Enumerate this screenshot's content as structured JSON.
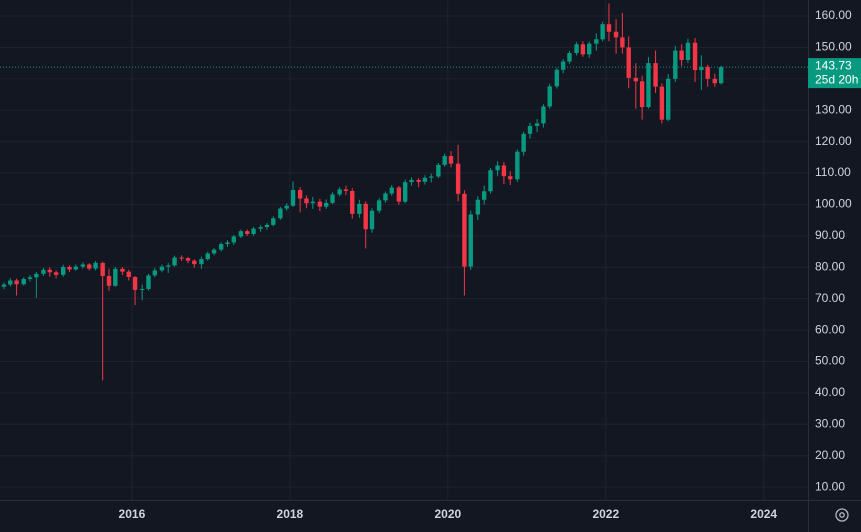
{
  "chart_data": {
    "type": "candlestick",
    "x": [
      2014.38,
      2014.46,
      2014.54,
      2014.63,
      2014.71,
      2014.79,
      2014.88,
      2014.96,
      2015.04,
      2015.13,
      2015.21,
      2015.29,
      2015.38,
      2015.46,
      2015.54,
      2015.63,
      2015.71,
      2015.79,
      2015.88,
      2015.96,
      2016.04,
      2016.13,
      2016.21,
      2016.29,
      2016.38,
      2016.46,
      2016.54,
      2016.63,
      2016.71,
      2016.79,
      2016.88,
      2016.96,
      2017.04,
      2017.13,
      2017.21,
      2017.29,
      2017.38,
      2017.46,
      2017.54,
      2017.63,
      2017.71,
      2017.79,
      2017.88,
      2017.96,
      2018.04,
      2018.13,
      2018.21,
      2018.29,
      2018.38,
      2018.46,
      2018.54,
      2018.63,
      2018.71,
      2018.79,
      2018.88,
      2018.96,
      2019.04,
      2019.13,
      2019.21,
      2019.29,
      2019.38,
      2019.46,
      2019.54,
      2019.63,
      2019.71,
      2019.79,
      2019.88,
      2019.96,
      2020.04,
      2020.13,
      2020.21,
      2020.29,
      2020.38,
      2020.46,
      2020.54,
      2020.63,
      2020.71,
      2020.79,
      2020.88,
      2020.96,
      2021.04,
      2021.13,
      2021.21,
      2021.29,
      2021.38,
      2021.46,
      2021.54,
      2021.63,
      2021.71,
      2021.79,
      2021.88,
      2021.96,
      2022.04,
      2022.13,
      2022.21,
      2022.29,
      2022.38,
      2022.46,
      2022.54,
      2022.63,
      2022.71,
      2022.79,
      2022.88,
      2022.96,
      2023.04,
      2023.13,
      2023.21,
      2023.29,
      2023.38,
      2023.46
    ],
    "open": [
      73.8,
      74.5,
      75.8,
      74.6,
      76.3,
      76.8,
      77.9,
      79.2,
      78.4,
      77.6,
      80.1,
      79.3,
      80.2,
      80.9,
      79.6,
      81.4,
      77.2,
      74.1,
      79.5,
      78.6,
      76.9,
      72.8,
      73.1,
      77.4,
      79.0,
      80.2,
      80.6,
      83.1,
      82.9,
      82.1,
      81.0,
      82.6,
      84.4,
      85.6,
      87.4,
      87.9,
      89.8,
      91.5,
      90.6,
      92.3,
      92.8,
      93.5,
      95.6,
      98.7,
      99.6,
      104.6,
      101.9,
      100.4,
      100.9,
      99.3,
      100.5,
      103.2,
      104.8,
      104.3,
      97.0,
      100.2,
      92.1,
      98.0,
      101.3,
      103.5,
      105.4,
      100.9,
      107.1,
      107.8,
      107.2,
      108.5,
      108.9,
      112.6,
      115.4,
      113.0,
      103.4,
      80.2,
      96.8,
      101.5,
      104.2,
      110.9,
      112.4,
      109.0,
      108.0,
      116.8,
      122.5,
      125.0,
      125.8,
      131.2,
      137.6,
      142.9,
      145.5,
      148.2,
      151.0,
      147.8,
      151.2,
      152.6,
      157.4,
      155.0,
      153.2,
      150.0,
      140.3,
      139.2,
      131.0,
      145.0,
      137.5,
      127.0,
      140.0,
      149.0,
      146.0,
      151.5,
      142.8,
      143.8,
      140.0,
      138.6
    ],
    "high": [
      75.2,
      76.5,
      76.4,
      76.8,
      77.5,
      78.5,
      79.8,
      80.0,
      79.0,
      80.8,
      80.6,
      80.9,
      81.6,
      81.3,
      82.0,
      81.8,
      79.5,
      80.1,
      80.0,
      79.2,
      77.2,
      74.5,
      77.9,
      79.8,
      80.9,
      81.3,
      83.7,
      83.8,
      83.3,
      82.5,
      83.4,
      85.0,
      86.1,
      87.9,
      88.6,
      90.3,
      92.0,
      92.0,
      92.9,
      93.4,
      94.1,
      96.2,
      99.2,
      100.4,
      107.3,
      105.5,
      102.9,
      102.4,
      101.8,
      101.6,
      103.9,
      105.5,
      106.0,
      105.2,
      101.5,
      101.0,
      98.8,
      102.0,
      104.1,
      106.2,
      105.9,
      107.9,
      108.6,
      108.4,
      109.3,
      109.8,
      113.2,
      116.2,
      117.0,
      119.0,
      104.5,
      98.0,
      102.6,
      106.0,
      111.6,
      113.8,
      113.5,
      110.6,
      117.5,
      123.2,
      126.0,
      127.2,
      131.9,
      138.4,
      143.5,
      146.3,
      148.9,
      151.7,
      152.0,
      151.9,
      154.5,
      158.2,
      164.0,
      159.0,
      161.0,
      153.5,
      145.0,
      141.0,
      147.0,
      149.0,
      138.5,
      141.5,
      150.5,
      151.0,
      152.8,
      153.0,
      147.5,
      144.5,
      141.6,
      144.2
    ],
    "low": [
      73.0,
      73.9,
      71.0,
      74.2,
      75.5,
      70.3,
      77.2,
      77.0,
      76.5,
      77.0,
      78.5,
      78.9,
      79.6,
      79.0,
      79.0,
      44.0,
      72.5,
      73.8,
      77.5,
      75.8,
      68.0,
      69.5,
      72.6,
      76.8,
      78.4,
      78.2,
      80.2,
      82.0,
      81.3,
      79.9,
      79.5,
      82.1,
      83.8,
      85.0,
      86.5,
      87.1,
      89.3,
      90.0,
      90.1,
      91.3,
      92.0,
      93.0,
      95.1,
      98.0,
      99.2,
      97.5,
      98.8,
      98.6,
      97.9,
      98.6,
      100.1,
      102.6,
      103.0,
      95.5,
      95.8,
      86.0,
      91.0,
      97.2,
      100.5,
      102.8,
      99.9,
      100.4,
      106.0,
      105.5,
      106.3,
      107.0,
      108.4,
      112.0,
      111.8,
      101.0,
      71.0,
      79.2,
      95.0,
      100.0,
      103.5,
      109.0,
      106.5,
      106.2,
      107.2,
      115.5,
      121.0,
      123.0,
      124.5,
      130.5,
      136.9,
      141.8,
      144.8,
      147.5,
      147.0,
      146.7,
      149.0,
      151.9,
      152.0,
      148.0,
      148.0,
      137.0,
      130.5,
      127.0,
      130.5,
      135.5,
      125.8,
      126.5,
      139.0,
      144.0,
      145.0,
      139.0,
      136.5,
      137.5,
      137.5,
      138.2
    ],
    "close": [
      74.5,
      75.8,
      74.6,
      76.3,
      76.8,
      77.9,
      79.2,
      78.4,
      77.6,
      80.1,
      79.3,
      80.2,
      80.9,
      79.6,
      81.4,
      77.2,
      74.1,
      79.5,
      78.6,
      76.9,
      72.8,
      73.1,
      77.4,
      79.0,
      80.2,
      80.6,
      83.1,
      82.9,
      82.1,
      81.0,
      82.6,
      84.4,
      85.6,
      87.4,
      87.9,
      89.8,
      91.5,
      90.6,
      92.3,
      92.8,
      93.5,
      95.6,
      98.7,
      99.6,
      104.6,
      101.9,
      100.4,
      100.9,
      99.3,
      100.5,
      103.2,
      104.8,
      104.3,
      97.0,
      100.2,
      92.1,
      98.0,
      101.3,
      103.5,
      105.4,
      100.9,
      107.1,
      107.8,
      107.2,
      108.5,
      108.9,
      112.6,
      115.4,
      113.0,
      103.4,
      80.2,
      96.8,
      101.5,
      104.2,
      110.9,
      112.4,
      109.0,
      108.0,
      116.8,
      122.5,
      125.0,
      125.8,
      131.2,
      137.6,
      142.9,
      145.5,
      148.2,
      151.0,
      147.8,
      151.2,
      152.6,
      157.4,
      155.0,
      153.2,
      150.0,
      140.3,
      139.2,
      131.0,
      145.0,
      137.5,
      127.0,
      140.0,
      149.0,
      146.0,
      151.5,
      142.8,
      143.8,
      140.0,
      138.6,
      143.73
    ],
    "up_color": "#089981",
    "down_color": "#f23645",
    "xlim": [
      2014.33,
      2024.56
    ],
    "ylim": [
      5.9,
      165.1
    ],
    "xticks": [
      2016,
      2018,
      2020,
      2022,
      2024
    ],
    "yticks": [
      {
        "value": 10,
        "label": "10.00"
      },
      {
        "value": 20,
        "label": "20.00"
      },
      {
        "value": 30,
        "label": "30.00"
      },
      {
        "value": 40,
        "label": "40.00"
      },
      {
        "value": 50,
        "label": "50.00"
      },
      {
        "value": 60,
        "label": "60.00"
      },
      {
        "value": 70,
        "label": "70.00"
      },
      {
        "value": 80,
        "label": "80.00"
      },
      {
        "value": 90,
        "label": "90.00"
      },
      {
        "value": 100,
        "label": "100.00"
      },
      {
        "value": 110,
        "label": "110.00"
      },
      {
        "value": 120,
        "label": "120.00"
      },
      {
        "value": 130,
        "label": "130.00"
      },
      {
        "value": 140,
        "label": "140.00"
      },
      {
        "value": 150,
        "label": "150.00"
      },
      {
        "value": 160,
        "label": "160.00"
      }
    ],
    "grid": true,
    "last_price": {
      "value": 143.73,
      "countdown": "25d 20h"
    }
  }
}
